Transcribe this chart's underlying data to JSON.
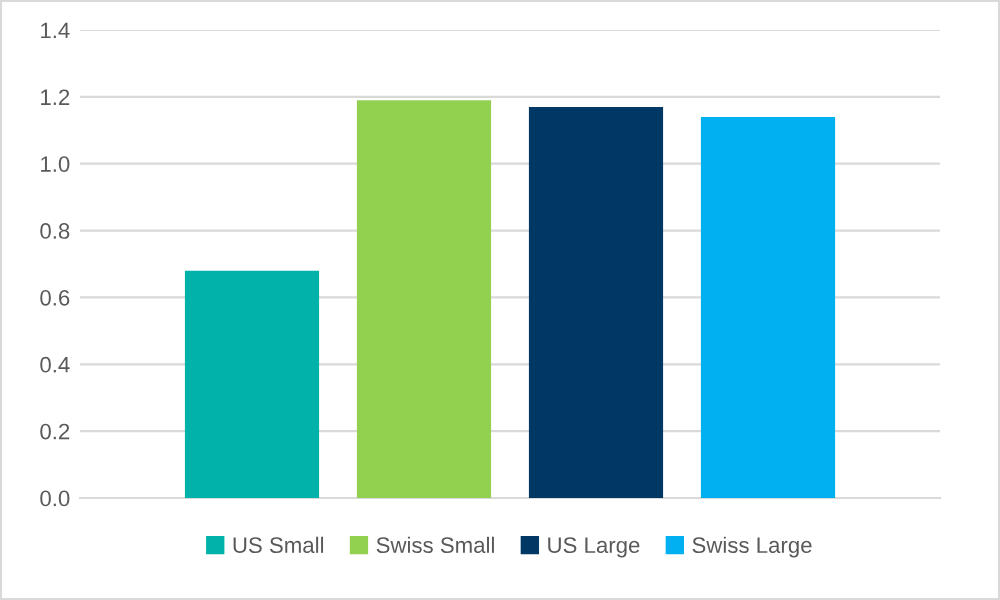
{
  "chart_data": {
    "type": "bar",
    "categories": [
      null
    ],
    "series": [
      {
        "name": "US Small",
        "color": "#00b2a9",
        "values": [
          0.68
        ]
      },
      {
        "name": "Swiss Small",
        "color": "#92d050",
        "values": [
          1.19
        ]
      },
      {
        "name": "US Large",
        "color": "#003865",
        "values": [
          1.17
        ]
      },
      {
        "name": "Swiss Large",
        "color": "#00b0f0",
        "values": [
          1.14
        ]
      }
    ],
    "ylim": [
      0,
      1.4
    ],
    "yticks": [
      {
        "value": 0,
        "label": "0.0"
      },
      {
        "value": 0.2,
        "label": "0.2"
      },
      {
        "value": 0.4,
        "label": "0.4"
      },
      {
        "value": 0.6,
        "label": "0.6"
      },
      {
        "value": 0.8,
        "label": "0.8"
      },
      {
        "value": 1.0,
        "label": "1.0"
      },
      {
        "value": 1.2,
        "label": "1.2"
      },
      {
        "value": 1.4,
        "label": "1.4"
      }
    ],
    "grid": "y",
    "legend": "bottom"
  }
}
